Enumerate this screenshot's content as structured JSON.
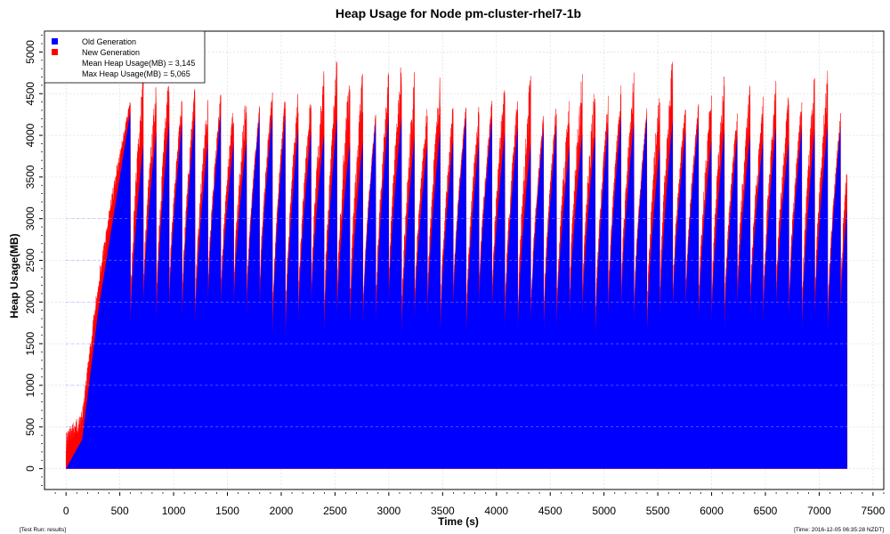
{
  "chart_data": {
    "type": "area",
    "title": "Heap Usage for Node pm-cluster-rhel7-1b",
    "xlabel": "Time (s)",
    "ylabel": "Heap Usage(MB)",
    "xlim": [
      -200,
      7600
    ],
    "ylim": [
      -250,
      5250
    ],
    "x_ticks": [
      0,
      500,
      1000,
      1500,
      2000,
      2500,
      3000,
      3500,
      4000,
      4500,
      5000,
      5500,
      6000,
      6500,
      7000,
      7500
    ],
    "y_ticks": [
      0,
      500,
      1000,
      1500,
      2000,
      2500,
      3000,
      3500,
      4000,
      4500,
      5000
    ],
    "x_tick_labels": [
      "0",
      "500",
      "1000",
      "1500",
      "2000",
      "2500",
      "3000",
      "3500",
      "4000",
      "4500",
      "5000",
      "5500",
      "6000",
      "6500",
      "7000",
      "7500"
    ],
    "y_tick_labels": [
      "0",
      "500",
      "1000",
      "1500",
      "2000",
      "2500",
      "3000",
      "3500",
      "4000",
      "4500",
      "5000"
    ],
    "grid": true,
    "legend_position": "top-left",
    "colors": {
      "old_generation": "#0000ff",
      "new_generation": "#ff0000"
    },
    "series": [
      {
        "name": "Old Generation",
        "color": "#0000ff",
        "stack": "base"
      },
      {
        "name": "New Generation",
        "color": "#ff0000",
        "stack": "top"
      }
    ],
    "legend_notes": [
      "Mean Heap Usage(MB) = 3,145",
      "Max Heap Usage(MB) = 5,065"
    ],
    "time_range_s": [
      0,
      7260
    ],
    "gc_cycles": {
      "start_peaks": [
        {
          "x": 0,
          "old": 0,
          "total": 450
        },
        {
          "x": 150,
          "old": 350,
          "total": 700
        },
        {
          "x": 300,
          "old": 1900,
          "total": 2300
        },
        {
          "x": 450,
          "old": 3100,
          "total": 3500
        },
        {
          "x": 600,
          "old": 4300,
          "total": 4450
        }
      ],
      "period_s": 120,
      "first_cycle_start_s": 600,
      "old_floor": [
        1550,
        2000
      ],
      "old_peak": [
        3900,
        4300
      ],
      "new_peak_total": [
        4300,
        4900
      ],
      "max_total": 5065,
      "end_value": {
        "x": 7260,
        "old": 2000,
        "total": 2450
      }
    }
  },
  "footer": {
    "left": "[Test Run: results]",
    "right": "[Time: 2016-12-05 06:35:28 NZDT]"
  }
}
